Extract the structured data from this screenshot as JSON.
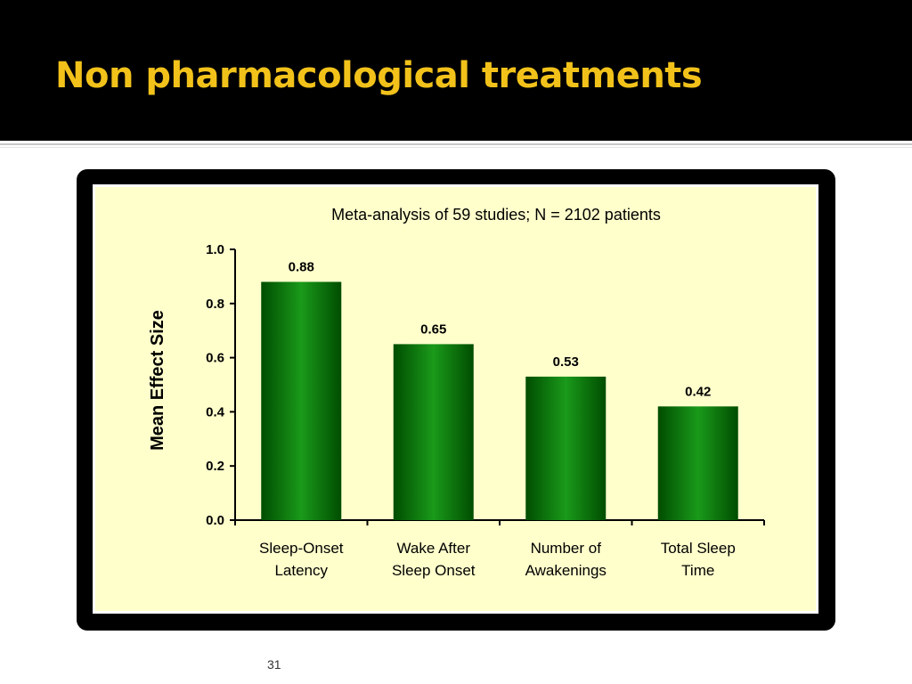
{
  "slide": {
    "title": "Non pharmacological treatments",
    "page_number": "31"
  },
  "colors": {
    "header_bg": "#000000",
    "title": "#f2c21a",
    "plot_bg": "#ffffcc",
    "bar_dark": "#004d00",
    "bar_light": "#1a9a1a"
  },
  "chart_data": {
    "type": "bar",
    "title": "Meta-analysis of 59 studies; N = 2102 patients",
    "xlabel": "",
    "ylabel": "Mean Effect Size",
    "categories": [
      [
        "Sleep-Onset",
        "Latency"
      ],
      [
        "Wake After",
        "Sleep Onset"
      ],
      [
        "Number of",
        "Awakenings"
      ],
      [
        "Total Sleep",
        "Time"
      ]
    ],
    "values": [
      0.88,
      0.65,
      0.53,
      0.42
    ],
    "value_labels": [
      "0.88",
      "0.65",
      "0.53",
      "0.42"
    ],
    "ylim": [
      0,
      1.0
    ],
    "yticks": [
      "0.0",
      "0.2",
      "0.4",
      "0.6",
      "0.8",
      "1.0"
    ],
    "grid": false,
    "legend": "none"
  }
}
